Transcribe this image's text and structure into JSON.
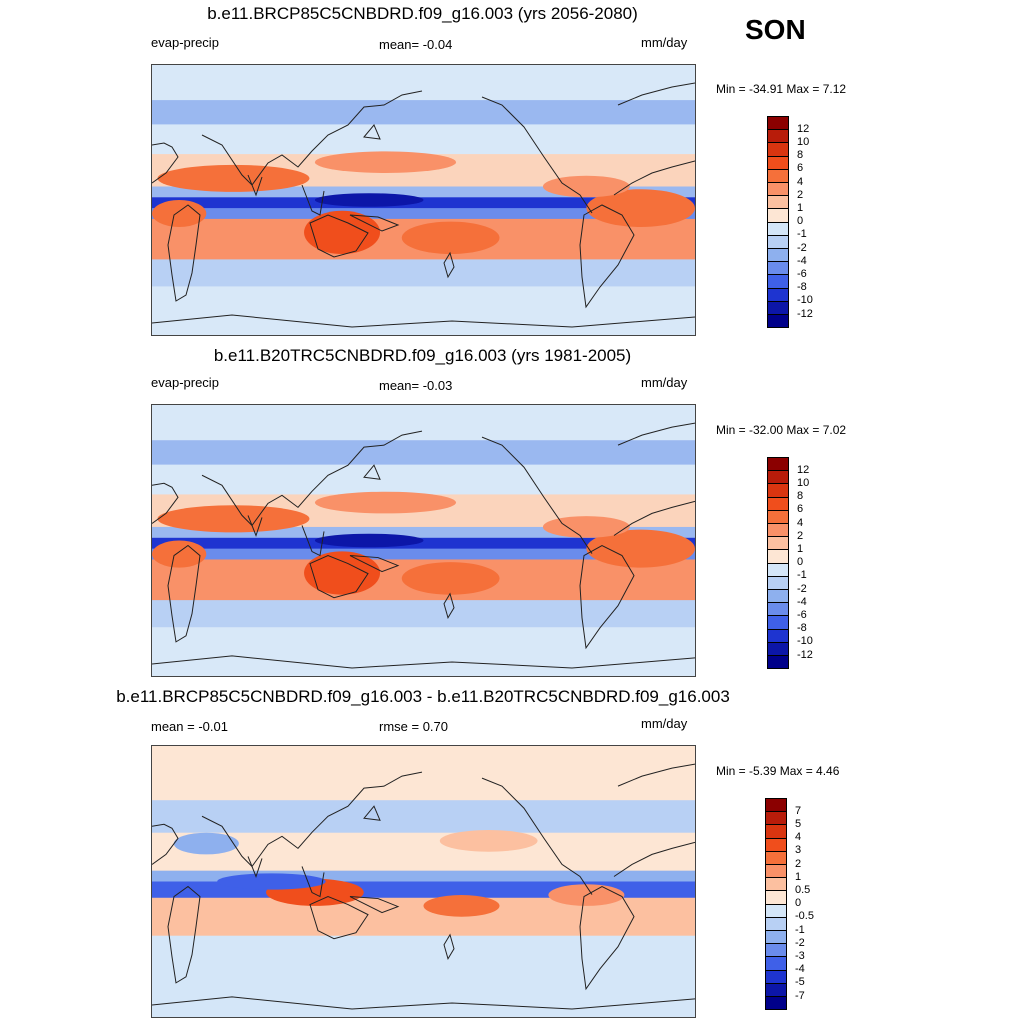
{
  "season": "SON",
  "panels": [
    {
      "title": "b.e11.BRCP85C5CNBDRD.f09_g16.003 (yrs 2056-2080)",
      "left_label": "evap-precip",
      "center_label": "mean=  -0.04",
      "right_label": "mm/day",
      "minmax": "Min = -34.91 Max =   7.12",
      "colorbar_labels": [
        "12",
        "10",
        "8",
        "6",
        "4",
        "2",
        "1",
        "0",
        "-1",
        "-2",
        "-4",
        "-6",
        "-8",
        "-10",
        "-12"
      ],
      "kind": "full"
    },
    {
      "title": "b.e11.B20TRC5CNBDRD.f09_g16.003 (yrs 1981-2005)",
      "left_label": "evap-precip",
      "center_label": "mean=  -0.03",
      "right_label": "mm/day",
      "minmax": "Min = -32.00 Max =   7.02",
      "colorbar_labels": [
        "12",
        "10",
        "8",
        "6",
        "4",
        "2",
        "1",
        "0",
        "-1",
        "-2",
        "-4",
        "-6",
        "-8",
        "-10",
        "-12"
      ],
      "kind": "full"
    },
    {
      "title": "b.e11.BRCP85C5CNBDRD.f09_g16.003 - b.e11.B20TRC5CNBDRD.f09_g16.003",
      "left_label": "mean =  -0.01",
      "center_label": "rmse =   0.70",
      "right_label": "mm/day",
      "minmax": "Min =  -5.39 Max =   4.46",
      "colorbar_labels": [
        "7",
        "5",
        "4",
        "3",
        "2",
        "1",
        "0.5",
        "0",
        "-0.5",
        "-1",
        "-2",
        "-3",
        "-4",
        "-5",
        "-7"
      ],
      "kind": "diff"
    }
  ],
  "colors": {
    "colorbar": [
      "#8b0000",
      "#b81c0a",
      "#d93510",
      "#f04e1c",
      "#f5703a",
      "#f99168",
      "#fcc0a0",
      "#fde6d4",
      "#d4e6f8",
      "#b8d0f4",
      "#8eb0ee",
      "#6a8cec",
      "#3f60e8",
      "#1e34d0",
      "#0c16a8",
      "#00008a"
    ],
    "ocean_base": "#d8e8f8",
    "coast": "#222222"
  },
  "chart_data": [
    {
      "type": "heatmap",
      "title": "b.e11.BRCP85C5CNBDRD.f09_g16.003 (yrs 2056-2080)",
      "variable": "evap-precip",
      "units": "mm/day",
      "mean": -0.04,
      "min": -34.91,
      "max": 7.12,
      "levels": [
        -12,
        -10,
        -8,
        -6,
        -4,
        -2,
        -1,
        0,
        1,
        2,
        4,
        6,
        8,
        10,
        12
      ]
    },
    {
      "type": "heatmap",
      "title": "b.e11.B20TRC5CNBDRD.f09_g16.003 (yrs 1981-2005)",
      "variable": "evap-precip",
      "units": "mm/day",
      "mean": -0.03,
      "min": -32.0,
      "max": 7.02,
      "levels": [
        -12,
        -10,
        -8,
        -6,
        -4,
        -2,
        -1,
        0,
        1,
        2,
        4,
        6,
        8,
        10,
        12
      ]
    },
    {
      "type": "heatmap",
      "title": "b.e11.BRCP85C5CNBDRD.f09_g16.003 - b.e11.B20TRC5CNBDRD.f09_g16.003",
      "units": "mm/day",
      "mean": -0.01,
      "rmse": 0.7,
      "min": -5.39,
      "max": 4.46,
      "levels": [
        -7,
        -5,
        -4,
        -3,
        -2,
        -1,
        -0.5,
        0,
        0.5,
        1,
        2,
        3,
        4,
        5,
        7
      ]
    }
  ]
}
